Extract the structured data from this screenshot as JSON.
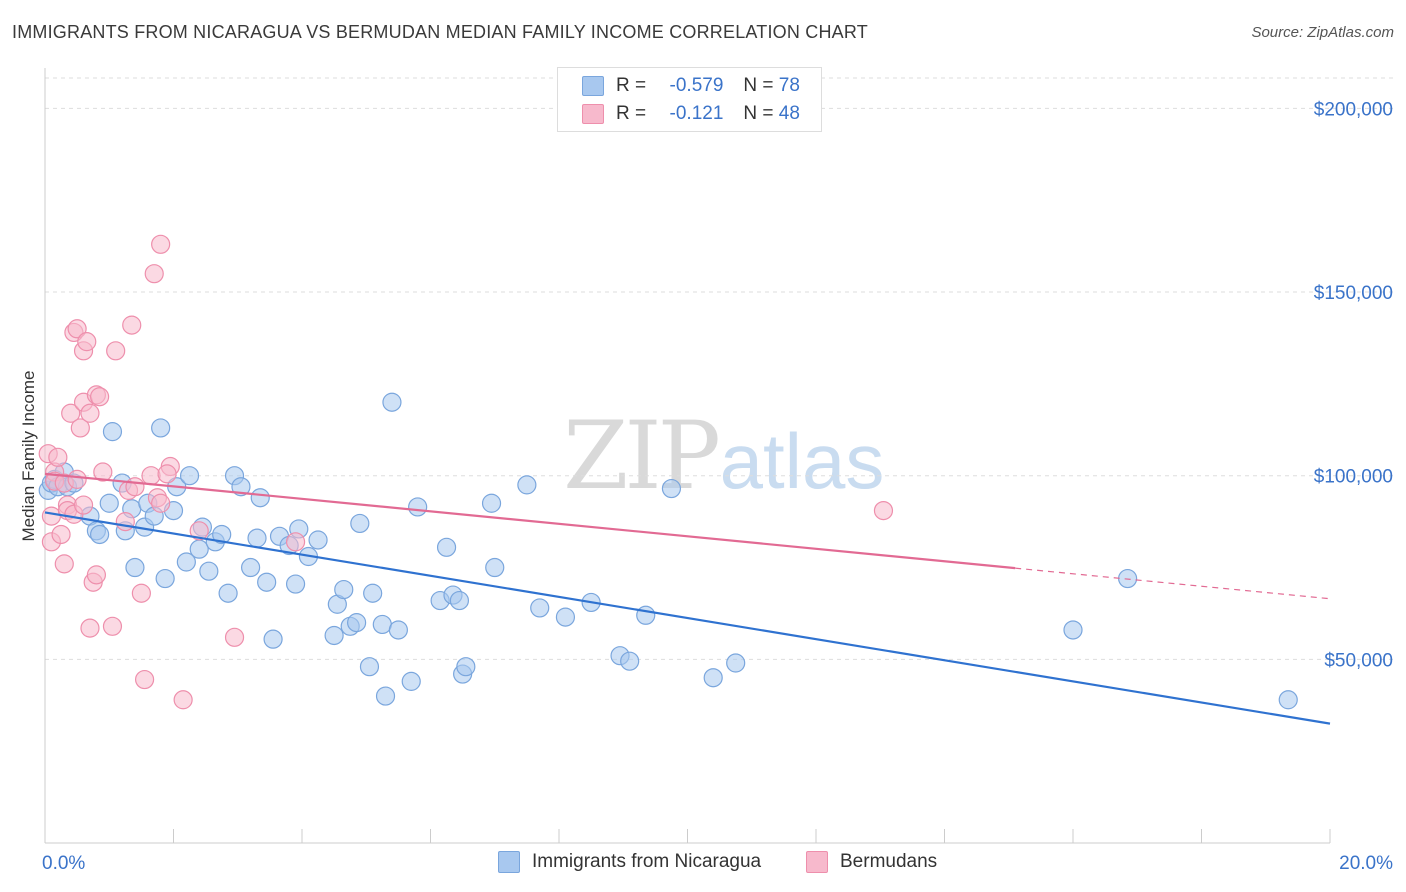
{
  "title": "IMMIGRANTS FROM NICARAGUA VS BERMUDAN MEDIAN FAMILY INCOME CORRELATION CHART",
  "source": "Source: ZipAtlas.com",
  "watermark": {
    "zip": "ZIP",
    "atlas": "atlas"
  },
  "legend": {
    "rows": [
      {
        "r_label": "R =",
        "r_value": "-0.579",
        "n_label": "N =",
        "n_value": "78"
      },
      {
        "r_label": "R =",
        "r_value": "-0.121",
        "n_label": "N =",
        "n_value": "48"
      }
    ]
  },
  "bottom_legend": {
    "series1": "Immigrants from Nicaragua",
    "series2": "Bermudans"
  },
  "colors": {
    "blue_fill": "#a8c8ef",
    "blue_stroke": "#7aa6dd",
    "blue_line": "#2f72d0",
    "pink_fill": "#f7b9cc",
    "pink_stroke": "#ee8fac",
    "pink_line": "#e26a93",
    "axis_label": "#3a73c9",
    "grid": "#dddddd"
  },
  "chart_data": {
    "type": "scatter",
    "title": "IMMIGRANTS FROM NICARAGUA VS BERMUDAN MEDIAN FAMILY INCOME CORRELATION CHART",
    "xlabel": "",
    "ylabel": "Median Family Income",
    "xlim": [
      0,
      20
    ],
    "ylim": [
      0,
      210000
    ],
    "x_tick_labels": [
      "0.0%",
      "20.0%"
    ],
    "y_ticks": [
      50000,
      100000,
      150000,
      200000
    ],
    "y_tick_labels": [
      "$50,000",
      "$100,000",
      "$150,000",
      "$200,000"
    ],
    "series": [
      {
        "name": "Immigrants from Nicaragua",
        "r": -0.579,
        "n": 78,
        "trend": {
          "x0": 0,
          "y0": 90000,
          "x1": 20,
          "y1": 32500,
          "solid_until": 20
        },
        "points": [
          [
            0.05,
            96000
          ],
          [
            0.1,
            98000
          ],
          [
            0.15,
            99000
          ],
          [
            0.2,
            97000
          ],
          [
            0.3,
            101000
          ],
          [
            0.35,
            97000
          ],
          [
            0.45,
            98000
          ],
          [
            0.7,
            89000
          ],
          [
            0.8,
            85000
          ],
          [
            0.85,
            84000
          ],
          [
            1.0,
            92500
          ],
          [
            1.05,
            112000
          ],
          [
            1.2,
            98000
          ],
          [
            1.25,
            85000
          ],
          [
            1.35,
            91000
          ],
          [
            1.4,
            75000
          ],
          [
            1.55,
            86000
          ],
          [
            1.6,
            92500
          ],
          [
            1.7,
            89000
          ],
          [
            1.8,
            113000
          ],
          [
            1.87,
            72000
          ],
          [
            2.0,
            90500
          ],
          [
            2.05,
            97000
          ],
          [
            2.2,
            76500
          ],
          [
            2.25,
            100000
          ],
          [
            2.4,
            80000
          ],
          [
            2.45,
            86000
          ],
          [
            2.55,
            74000
          ],
          [
            2.65,
            82000
          ],
          [
            2.75,
            84000
          ],
          [
            2.85,
            68000
          ],
          [
            2.95,
            100000
          ],
          [
            3.05,
            97000
          ],
          [
            3.2,
            75000
          ],
          [
            3.3,
            83000
          ],
          [
            3.35,
            94000
          ],
          [
            3.45,
            71000
          ],
          [
            3.55,
            55500
          ],
          [
            3.65,
            83500
          ],
          [
            3.8,
            81000
          ],
          [
            3.9,
            70500
          ],
          [
            3.95,
            85500
          ],
          [
            4.1,
            78000
          ],
          [
            4.25,
            82500
          ],
          [
            4.5,
            56500
          ],
          [
            4.55,
            65000
          ],
          [
            4.65,
            69000
          ],
          [
            4.75,
            59000
          ],
          [
            4.85,
            60000
          ],
          [
            4.9,
            87000
          ],
          [
            5.05,
            48000
          ],
          [
            5.1,
            68000
          ],
          [
            5.25,
            59500
          ],
          [
            5.3,
            40000
          ],
          [
            5.4,
            120000
          ],
          [
            5.5,
            58000
          ],
          [
            5.7,
            44000
          ],
          [
            5.8,
            91500
          ],
          [
            6.15,
            66000
          ],
          [
            6.25,
            80500
          ],
          [
            6.35,
            67500
          ],
          [
            6.45,
            66000
          ],
          [
            6.5,
            46000
          ],
          [
            6.55,
            48000
          ],
          [
            6.95,
            92500
          ],
          [
            7.0,
            75000
          ],
          [
            7.5,
            97500
          ],
          [
            7.7,
            64000
          ],
          [
            8.1,
            61500
          ],
          [
            8.5,
            65500
          ],
          [
            8.95,
            51000
          ],
          [
            9.1,
            49500
          ],
          [
            9.35,
            62000
          ],
          [
            9.75,
            96500
          ],
          [
            10.4,
            45000
          ],
          [
            10.75,
            49000
          ],
          [
            16.0,
            58000
          ],
          [
            16.85,
            72000
          ],
          [
            19.35,
            39000
          ]
        ]
      },
      {
        "name": "Bermudans",
        "r": -0.121,
        "n": 48,
        "trend": {
          "x0": 0,
          "y0": 100500,
          "x1": 20,
          "y1": 66500,
          "solid_until": 15.1
        },
        "points": [
          [
            0.05,
            106000
          ],
          [
            0.1,
            89000
          ],
          [
            0.15,
            101000
          ],
          [
            0.1,
            82000
          ],
          [
            0.15,
            98500
          ],
          [
            0.25,
            84000
          ],
          [
            0.3,
            76000
          ],
          [
            0.35,
            92000
          ],
          [
            0.35,
            90500
          ],
          [
            0.45,
            89500
          ],
          [
            0.4,
            117000
          ],
          [
            0.45,
            139000
          ],
          [
            0.5,
            140000
          ],
          [
            0.55,
            113000
          ],
          [
            0.6,
            92000
          ],
          [
            0.6,
            120000
          ],
          [
            0.6,
            134000
          ],
          [
            0.65,
            136500
          ],
          [
            0.7,
            117000
          ],
          [
            0.7,
            58500
          ],
          [
            0.75,
            71000
          ],
          [
            0.8,
            73000
          ],
          [
            0.8,
            122000
          ],
          [
            0.85,
            121500
          ],
          [
            0.9,
            101000
          ],
          [
            1.05,
            59000
          ],
          [
            1.1,
            134000
          ],
          [
            1.25,
            87500
          ],
          [
            1.3,
            96000
          ],
          [
            1.35,
            141000
          ],
          [
            1.4,
            97000
          ],
          [
            1.5,
            68000
          ],
          [
            1.55,
            44500
          ],
          [
            1.65,
            100000
          ],
          [
            1.7,
            155000
          ],
          [
            1.75,
            94000
          ],
          [
            1.8,
            92500
          ],
          [
            1.8,
            163000
          ],
          [
            1.95,
            102500
          ],
          [
            1.9,
            100500
          ],
          [
            2.15,
            39000
          ],
          [
            2.4,
            85000
          ],
          [
            2.95,
            56000
          ],
          [
            3.9,
            82000
          ],
          [
            13.05,
            90500
          ],
          [
            0.2,
            105000
          ],
          [
            0.3,
            98000
          ],
          [
            0.5,
            99000
          ]
        ]
      }
    ]
  }
}
